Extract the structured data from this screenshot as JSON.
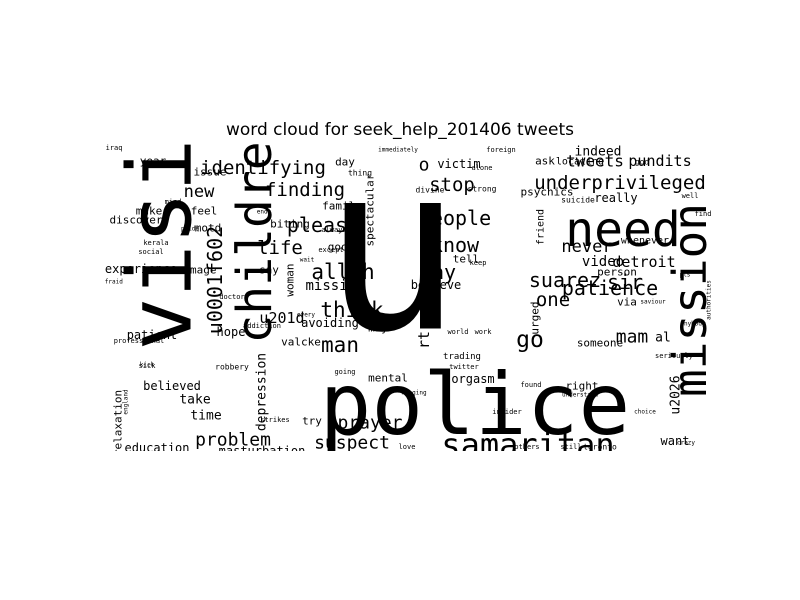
{
  "title": "word cloud for seek_help_201406 tweets",
  "colors": {
    "background": "#ffffff",
    "text": "#000000"
  },
  "words": [
    "u",
    "visit",
    "police",
    "children",
    "need",
    "mission",
    "samaritan",
    "u0001f602",
    "identifying",
    "finding",
    "underprivileged",
    "please",
    "life",
    "people",
    "know",
    "allah",
    "way",
    "think",
    "man",
    "go",
    "patience",
    "suarez",
    "sir",
    "one",
    "mam",
    "problem",
    "suspect",
    "prayer",
    "stop",
    "never",
    "new",
    "detroit",
    "depression",
    "u201d",
    "u2026",
    "missing",
    "o",
    "rt",
    "tweets",
    "pundits",
    "indeed",
    "video",
    "want",
    "time",
    "take",
    "believed",
    "hope",
    "patient",
    "education",
    "relaxation",
    "masturbation",
    "experience",
    "image",
    "discover",
    "make",
    "feel",
    "year",
    "issue",
    "motd",
    "biting",
    "family",
    "good",
    "day",
    "victim",
    "ask",
    "locating",
    "psychics",
    "really",
    "person",
    "via",
    "urged",
    "friend",
    "someone",
    "right",
    "orgasm",
    "trading",
    "mental",
    "may",
    "avoiding",
    "valcke",
    "woman",
    "say",
    "try",
    "believe",
    "tell",
    "al",
    "spectacular",
    "whenever",
    "thing",
    "divine",
    "strong",
    "alone",
    "suicide",
    "god",
    "well",
    "find",
    "sick",
    "robbery",
    "doctor",
    "afraid",
    "kerala",
    "social",
    "professional",
    "iraq",
    "immediately",
    "foreign",
    "toronto",
    "still",
    "others",
    "love",
    "insider",
    "crazy",
    "seriously",
    "understand",
    "twitter",
    "world",
    "work",
    "every",
    "always",
    "except",
    "addiction",
    "strikes",
    "hanging",
    "found",
    "choice",
    "anybody",
    "saviour",
    "authorities",
    "england",
    "kick",
    "wait",
    "mind",
    "pride",
    "ends",
    "keep",
    "going",
    "pls"
  ]
}
